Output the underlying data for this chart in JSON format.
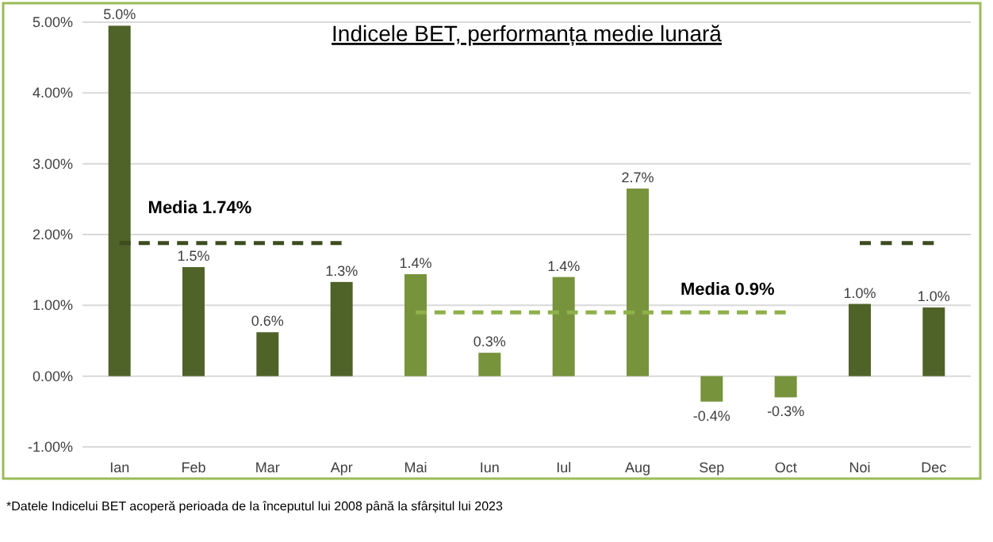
{
  "chart_data": {
    "type": "bar",
    "title": "Indicele BET, performanța medie lunară",
    "categories": [
      "Ian",
      "Feb",
      "Mar",
      "Apr",
      "Mai",
      "Iun",
      "Iul",
      "Aug",
      "Sep",
      "Oct",
      "Noi",
      "Dec"
    ],
    "series": [
      {
        "values": [
          4.95,
          1.54,
          0.62,
          1.33,
          1.44,
          0.33,
          1.4,
          2.65,
          -0.36,
          -0.3,
          1.02,
          0.97
        ],
        "colors": [
          "#4f6228",
          "#4f6228",
          "#4f6228",
          "#4f6228",
          "#77933c",
          "#77933c",
          "#77933c",
          "#77933c",
          "#77933c",
          "#77933c",
          "#4f6228",
          "#4f6228"
        ],
        "value_labels": [
          "5.0%",
          "1.5%",
          "0.6%",
          "1.3%",
          "1.4%",
          "0.3%",
          "1.4%",
          "2.7%",
          "-0.4%",
          "-0.3%",
          "1.0%",
          "1.0%"
        ]
      },
      {
        "type": "line",
        "color": "#3d4c1f",
        "line_style": "dashed",
        "values": [
          1.88,
          1.88,
          1.88,
          1.88,
          null,
          null,
          null,
          null,
          null,
          null,
          null,
          null
        ]
      },
      {
        "type": "line",
        "color": "#8fb04a",
        "line_style": "dashed",
        "values": [
          null,
          null,
          null,
          null,
          0.9,
          0.9,
          0.9,
          0.9,
          0.9,
          0.9,
          null,
          null
        ]
      },
      {
        "type": "line",
        "color": "#3d4c1f",
        "line_style": "dashed",
        "values": [
          null,
          null,
          null,
          null,
          null,
          null,
          null,
          null,
          null,
          null,
          1.88,
          1.88
        ]
      }
    ],
    "ylim": [
      -1,
      5
    ],
    "yticks": [
      {
        "value": -1,
        "label": "-1.00%"
      },
      {
        "value": 0,
        "label": "0.00%"
      },
      {
        "value": 1,
        "label": "1.00%"
      },
      {
        "value": 2,
        "label": "2.00%"
      },
      {
        "value": 3,
        "label": "3.00%"
      },
      {
        "value": 4,
        "label": "4.00%"
      },
      {
        "value": 5,
        "label": "5.00%"
      }
    ],
    "grid": "y",
    "annotations": [
      "Media 1.74%",
      "Media 0.9%",
      "*Datele Indicelui BET acoperă perioada de la începutul lui 2008 până la sfârșitul lui 2023"
    ]
  }
}
